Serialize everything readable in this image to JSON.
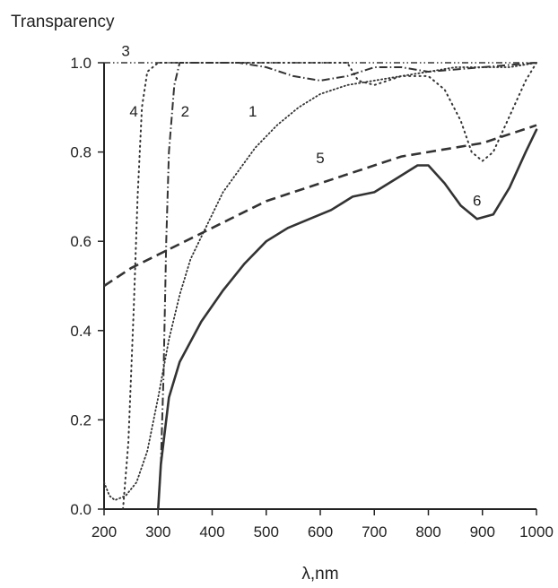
{
  "chart_data": {
    "type": "line",
    "title": "",
    "ylabel": "Transparency",
    "xlabel": "λ,nm",
    "xlim": [
      200,
      1000
    ],
    "ylim": [
      0,
      1
    ],
    "x_ticks": [
      200,
      300,
      400,
      500,
      600,
      700,
      800,
      900,
      1000
    ],
    "y_ticks": [
      "0.0",
      "0.2",
      "0.4",
      "0.6",
      "0.8",
      "1.0"
    ],
    "grid": false,
    "legend": "none",
    "series": [
      {
        "label": "1",
        "style": "dotted",
        "points": [
          [
            200,
            0.06
          ],
          [
            210,
            0.03
          ],
          [
            220,
            0.02
          ],
          [
            240,
            0.03
          ],
          [
            260,
            0.06
          ],
          [
            280,
            0.13
          ],
          [
            300,
            0.25
          ],
          [
            320,
            0.38
          ],
          [
            340,
            0.48
          ],
          [
            360,
            0.56
          ],
          [
            380,
            0.61
          ],
          [
            400,
            0.66
          ],
          [
            420,
            0.71
          ],
          [
            450,
            0.76
          ],
          [
            480,
            0.81
          ],
          [
            520,
            0.86
          ],
          [
            560,
            0.9
          ],
          [
            600,
            0.93
          ],
          [
            650,
            0.95
          ],
          [
            700,
            0.96
          ],
          [
            750,
            0.97
          ],
          [
            800,
            0.98
          ],
          [
            850,
            0.99
          ],
          [
            900,
            0.99
          ],
          [
            950,
            0.99
          ],
          [
            1000,
            1.0
          ]
        ],
        "label_at": [
          475,
          0.88
        ]
      },
      {
        "label": "2",
        "style": "dash-dot",
        "points": [
          [
            300,
            0.0
          ],
          [
            305,
            0.1
          ],
          [
            310,
            0.3
          ],
          [
            315,
            0.6
          ],
          [
            320,
            0.8
          ],
          [
            330,
            0.95
          ],
          [
            340,
            1.0
          ],
          [
            450,
            1.0
          ],
          [
            500,
            0.99
          ],
          [
            550,
            0.97
          ],
          [
            600,
            0.96
          ],
          [
            650,
            0.97
          ],
          [
            700,
            0.99
          ],
          [
            750,
            0.99
          ],
          [
            800,
            0.98
          ],
          [
            900,
            0.99
          ],
          [
            1000,
            1.0
          ]
        ],
        "label_at": [
          350,
          0.88
        ]
      },
      {
        "label": "3",
        "style": "dash-dot-dot",
        "points": [
          [
            200,
            1.0
          ],
          [
            660,
            1.0
          ],
          [
            690,
            1.0
          ],
          [
            720,
            1.0
          ],
          [
            800,
            1.0
          ],
          [
            1000,
            1.0
          ]
        ],
        "label_at": [
          240,
          1.015
        ]
      },
      {
        "label": "4",
        "style": "dotted-sparse",
        "points": [
          [
            235,
            0.0
          ],
          [
            245,
            0.15
          ],
          [
            255,
            0.45
          ],
          [
            262,
            0.7
          ],
          [
            270,
            0.9
          ],
          [
            280,
            0.98
          ],
          [
            300,
            1.0
          ],
          [
            650,
            1.0
          ],
          [
            670,
            0.96
          ],
          [
            700,
            0.95
          ],
          [
            750,
            0.97
          ],
          [
            800,
            0.97
          ],
          [
            830,
            0.94
          ],
          [
            860,
            0.87
          ],
          [
            880,
            0.8
          ],
          [
            900,
            0.78
          ],
          [
            920,
            0.8
          ],
          [
            950,
            0.88
          ],
          [
            980,
            0.96
          ],
          [
            1000,
            1.0
          ]
        ],
        "label_at": [
          255,
          0.88
        ]
      },
      {
        "label": "5",
        "style": "dashed",
        "points": [
          [
            200,
            0.5
          ],
          [
            250,
            0.54
          ],
          [
            300,
            0.57
          ],
          [
            350,
            0.6
          ],
          [
            400,
            0.63
          ],
          [
            450,
            0.66
          ],
          [
            500,
            0.69
          ],
          [
            550,
            0.71
          ],
          [
            600,
            0.73
          ],
          [
            650,
            0.75
          ],
          [
            700,
            0.77
          ],
          [
            750,
            0.79
          ],
          [
            800,
            0.8
          ],
          [
            850,
            0.81
          ],
          [
            900,
            0.82
          ],
          [
            950,
            0.84
          ],
          [
            1000,
            0.86
          ]
        ],
        "label_at": [
          600,
          0.775
        ]
      },
      {
        "label": "6",
        "style": "solid",
        "points": [
          [
            300,
            0.0
          ],
          [
            305,
            0.1
          ],
          [
            320,
            0.25
          ],
          [
            340,
            0.33
          ],
          [
            380,
            0.42
          ],
          [
            420,
            0.49
          ],
          [
            460,
            0.55
          ],
          [
            500,
            0.6
          ],
          [
            540,
            0.63
          ],
          [
            580,
            0.65
          ],
          [
            620,
            0.67
          ],
          [
            660,
            0.7
          ],
          [
            700,
            0.71
          ],
          [
            740,
            0.74
          ],
          [
            780,
            0.77
          ],
          [
            800,
            0.77
          ],
          [
            830,
            0.73
          ],
          [
            860,
            0.68
          ],
          [
            890,
            0.65
          ],
          [
            920,
            0.66
          ],
          [
            950,
            0.72
          ],
          [
            980,
            0.8
          ],
          [
            1000,
            0.85
          ]
        ],
        "label_at": [
          890,
          0.68
        ]
      }
    ]
  }
}
